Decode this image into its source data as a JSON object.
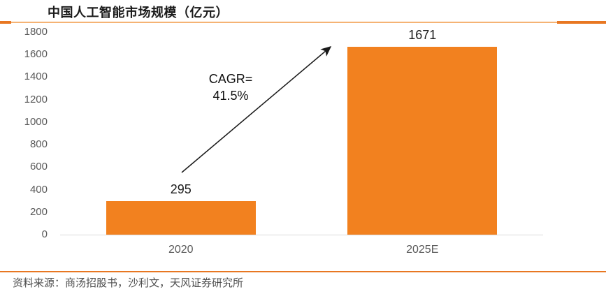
{
  "header": {
    "title": "中国人工智能市场规模（亿元）"
  },
  "chart_data": {
    "type": "bar",
    "title": "中国人工智能市场规模（亿元）",
    "categories": [
      "2020",
      "2025E"
    ],
    "values": [
      295,
      1671
    ],
    "data_labels": [
      "295",
      "1671"
    ],
    "ylim": [
      0,
      1800
    ],
    "ytick_step": 200,
    "yticks": [
      0,
      200,
      400,
      600,
      800,
      1000,
      1200,
      1400,
      1600,
      1800
    ],
    "grid": false,
    "legend": null,
    "annotation": {
      "line1": "CAGR=",
      "line2": "41.5%",
      "text": "CAGR=41.5%"
    }
  },
  "footer": {
    "source": "资料来源：商汤招股书，沙利文，天风证券研究所"
  },
  "colors": {
    "bar_orange": "#F2811F",
    "accent_orange": "#E87722",
    "rule_light_orange": "#F5B374",
    "axis_line": "#D9D9D9",
    "tick_text": "#595959",
    "label_text": "#1A1A1A",
    "source_text": "#4D4D4D",
    "arrow_black": "#1A1A1A"
  }
}
